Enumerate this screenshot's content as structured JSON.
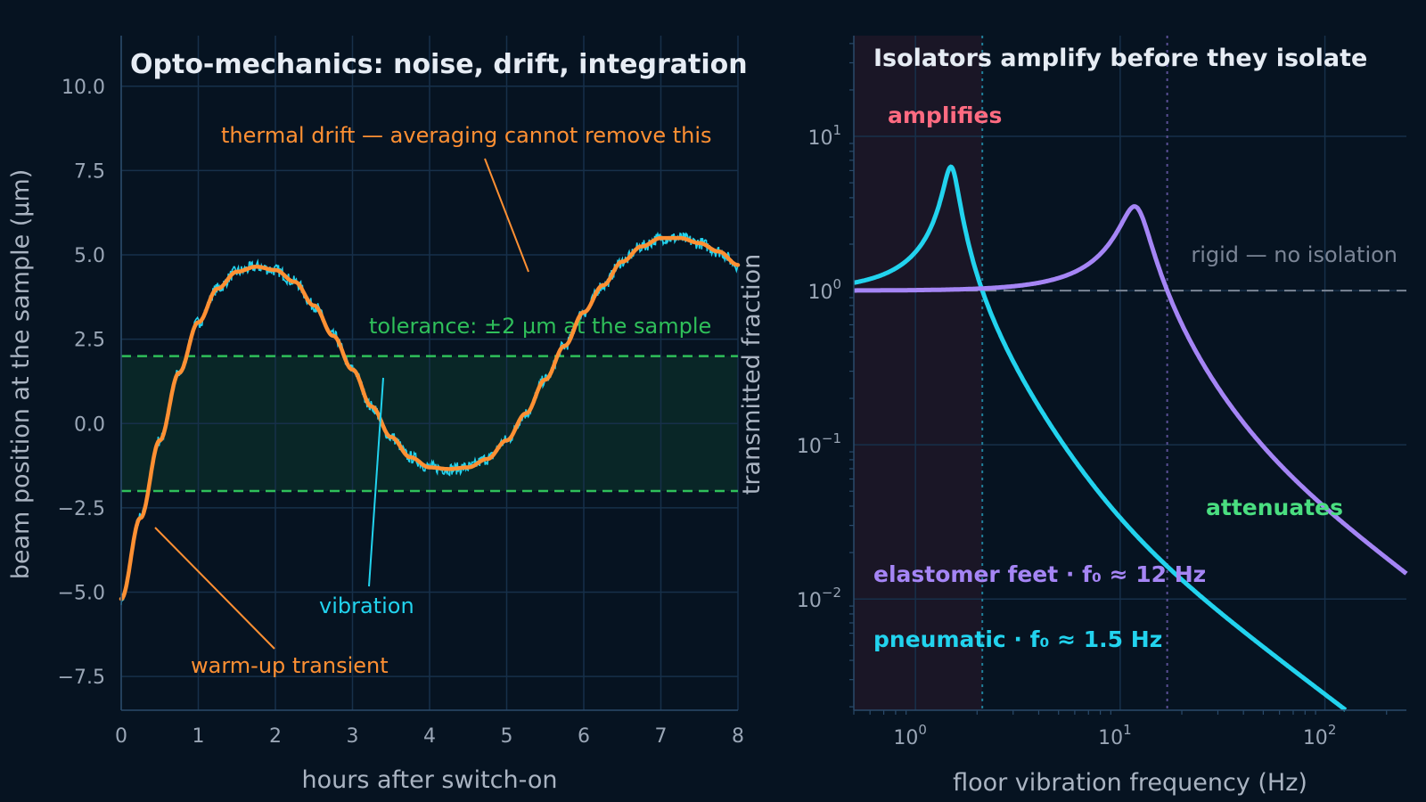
{
  "chart_data": [
    {
      "type": "line",
      "title": "Opto-mechanics: noise, drift, integration",
      "xlabel": "hours after switch-on",
      "ylabel": "beam position at the sample (µm)",
      "xlim": [
        0,
        8
      ],
      "ylim": [
        -8.5,
        11.5
      ],
      "xticks": [
        0,
        1,
        2,
        3,
        4,
        5,
        6,
        7,
        8
      ],
      "xtick_labels": [
        "0",
        "1",
        "2",
        "3",
        "4",
        "5",
        "6",
        "7",
        "8"
      ],
      "yticks": [
        -7.5,
        -5.0,
        -2.5,
        0.0,
        2.5,
        5.0,
        7.5,
        10.0
      ],
      "ytick_labels": [
        "−7.5",
        "−5.0",
        "−2.5",
        "0.0",
        "2.5",
        "5.0",
        "7.5",
        "10.0"
      ],
      "grid": true,
      "tolerance": {
        "lower": -2,
        "upper": 2,
        "label": "tolerance: ±2 µm at the sample",
        "color": "#2fbf5a"
      },
      "series": [
        {
          "color": "#ff9033",
          "x": [
            0,
            0.25,
            0.5,
            0.75,
            1.0,
            1.25,
            1.5,
            1.75,
            2.0,
            2.25,
            2.5,
            2.75,
            3.0,
            3.25,
            3.5,
            3.75,
            4.0,
            4.25,
            4.5,
            4.75,
            5.0,
            5.25,
            5.5,
            5.75,
            6.0,
            6.25,
            6.5,
            6.75,
            7.0,
            7.25,
            7.5,
            7.75,
            8.0
          ],
          "y": [
            -5.2,
            -2.8,
            -0.5,
            1.5,
            3.0,
            4.0,
            4.5,
            4.65,
            4.55,
            4.2,
            3.5,
            2.6,
            1.6,
            0.5,
            -0.4,
            -1.0,
            -1.3,
            -1.35,
            -1.3,
            -1.05,
            -0.5,
            0.3,
            1.3,
            2.3,
            3.3,
            4.1,
            4.8,
            5.25,
            5.5,
            5.5,
            5.35,
            5.1,
            4.7
          ]
        },
        {
          "name": "vibration",
          "color": "#22d3ee",
          "noise_amplitude": 0.18
        }
      ],
      "annotations": [
        {
          "text": "thermal drift — averaging cannot remove this",
          "color": "#ff9033"
        },
        {
          "text": "vibration",
          "color": "#22d3ee"
        },
        {
          "text": "warm-up transient",
          "color": "#ff9033"
        }
      ]
    },
    {
      "type": "line",
      "title": "Isolators amplify before they isolate",
      "xlabel": "floor vibration frequency (Hz)",
      "ylabel": "transmitted fraction",
      "xscale": "log",
      "yscale": "log",
      "xlim": [
        0.5,
        250
      ],
      "ylim": [
        0.0019,
        45
      ],
      "xticks": [
        1,
        10,
        100
      ],
      "xtick_labels": [
        {
          "base": "10",
          "exp": "0"
        },
        {
          "base": "10",
          "exp": "1"
        },
        {
          "base": "10",
          "exp": "2"
        }
      ],
      "yticks": [
        0.01,
        0.1,
        1,
        10
      ],
      "ytick_labels": [
        {
          "base": "10",
          "exp": "−2"
        },
        {
          "base": "10",
          "exp": "−1"
        },
        {
          "base": "10",
          "exp": "0"
        },
        {
          "base": "10",
          "exp": "1"
        }
      ],
      "grid": true,
      "reference_line": {
        "value": 1,
        "label": "rigid — no isolation",
        "color": "#7b8596"
      },
      "regions": [
        {
          "label": "amplifies",
          "color": "#ff6b81"
        },
        {
          "label": "attenuates",
          "color": "#4ade80"
        }
      ],
      "series": [
        {
          "name": "pneumatic · f₀ ≈ 1.5 Hz",
          "color": "#22d3ee",
          "f0": 1.5,
          "zeta": 0.08
        },
        {
          "name": "elastomer feet · f₀ ≈ 12 Hz",
          "color": "#a585f5",
          "f0": 12,
          "zeta": 0.15
        }
      ]
    }
  ]
}
